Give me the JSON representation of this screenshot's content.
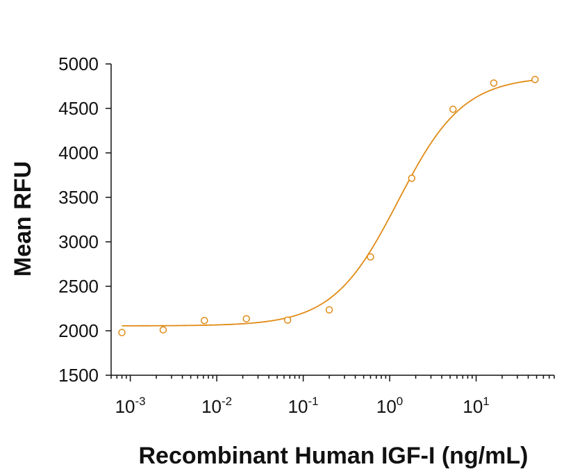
{
  "chart_data": {
    "type": "scatter",
    "xlabel": "Recombinant Human IGF-I (ng/mL)",
    "ylabel": "Mean RFU",
    "xscale": "log",
    "xlim": [
      0.0006,
      80
    ],
    "ylim": [
      1500,
      5000
    ],
    "y_ticks": [
      1500,
      2000,
      2500,
      3000,
      3500,
      4000,
      4500,
      5000
    ],
    "x_ticks": [
      {
        "value": 0.001,
        "base": "10",
        "exp": "-3"
      },
      {
        "value": 0.01,
        "base": "10",
        "exp": "-2"
      },
      {
        "value": 0.1,
        "base": "10",
        "exp": "-1"
      },
      {
        "value": 1,
        "base": "10",
        "exp": "0"
      },
      {
        "value": 10,
        "base": "10",
        "exp": "1"
      }
    ],
    "grid": false,
    "series": [
      {
        "type": "scatter",
        "marker": "open-circle",
        "color": "#e08a14",
        "x": [
          0.0008,
          0.0024,
          0.0072,
          0.022,
          0.066,
          0.2,
          0.6,
          1.8,
          5.4,
          16,
          48
        ],
        "y": [
          1980,
          2010,
          2115,
          2135,
          2120,
          2235,
          2830,
          3715,
          4490,
          4785,
          4825
        ]
      }
    ],
    "fit": {
      "type": "4PL",
      "color": "#e08a14",
      "bottom": 2055,
      "top": 4860,
      "ec50": 1.25,
      "hill": 1.15
    }
  }
}
